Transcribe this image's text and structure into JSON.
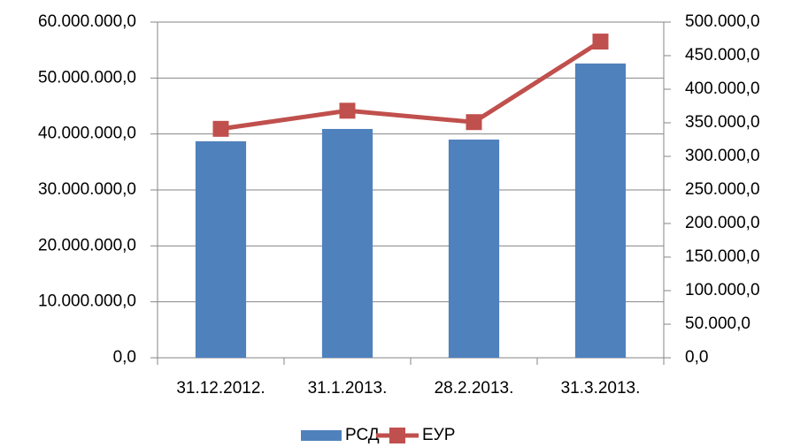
{
  "chart_data": {
    "type": "bar",
    "categories": [
      "31.12.2012.",
      "31.1.2013.",
      "28.2.2013.",
      "31.3.2013."
    ],
    "series": [
      {
        "name": "РСД",
        "type": "bar",
        "color": "#4f81bd",
        "values": [
          38700000,
          40900000,
          39000000,
          52600000
        ]
      },
      {
        "name": "ЕУР",
        "type": "line",
        "axis": "y2",
        "color": "#c0504d",
        "values": [
          341000,
          368000,
          351000,
          471000
        ]
      }
    ],
    "ylim": [
      0,
      60000000
    ],
    "yticks": [
      {
        "value": 0,
        "label": "0,0"
      },
      {
        "value": 10000000,
        "label": "10.000.000,0"
      },
      {
        "value": 20000000,
        "label": "20.000.000,0"
      },
      {
        "value": 30000000,
        "label": "30.000.000,0"
      },
      {
        "value": 40000000,
        "label": "40.000.000,0"
      },
      {
        "value": 50000000,
        "label": "50.000.000,0"
      },
      {
        "value": 60000000,
        "label": "60.000.000,0"
      }
    ],
    "y2lim": [
      0,
      500000
    ],
    "y2ticks": [
      {
        "value": 0,
        "label": "0,0"
      },
      {
        "value": 50000,
        "label": "50.000,0"
      },
      {
        "value": 100000,
        "label": "100.000,0"
      },
      {
        "value": 150000,
        "label": "150.000,0"
      },
      {
        "value": 200000,
        "label": "200.000,0"
      },
      {
        "value": 250000,
        "label": "250.000,0"
      },
      {
        "value": 300000,
        "label": "300.000,0"
      },
      {
        "value": 350000,
        "label": "350.000,0"
      },
      {
        "value": 400000,
        "label": "400.000,0"
      },
      {
        "value": 450000,
        "label": "450.000,0"
      },
      {
        "value": 500000,
        "label": "500.000,0"
      }
    ],
    "grid": true,
    "legend": "bottom"
  }
}
